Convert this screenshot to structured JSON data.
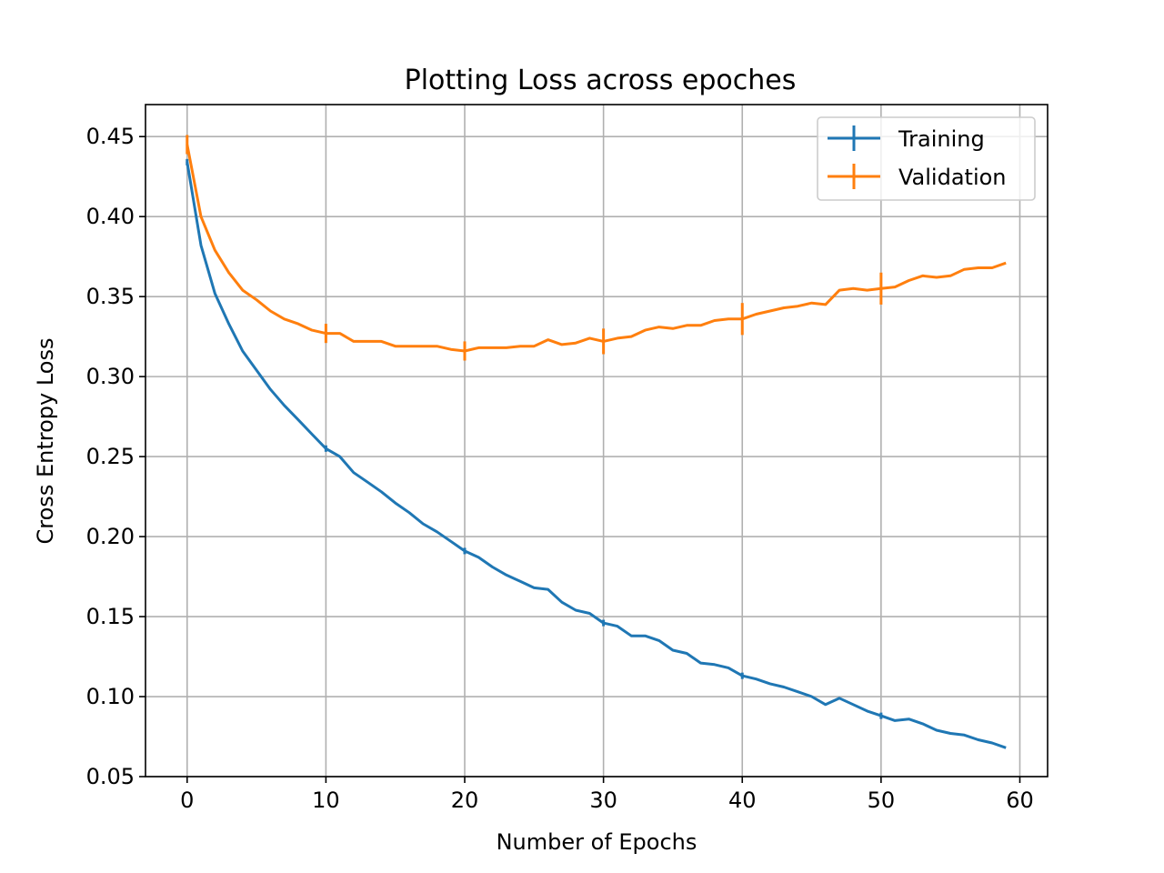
{
  "chart_data": {
    "type": "line",
    "title": "Plotting Loss across epoches",
    "xlabel": "Number of Epochs",
    "ylabel": "Cross Entropy Loss",
    "xlim": [
      -3,
      62
    ],
    "ylim": [
      0.05,
      0.47
    ],
    "xticks": [
      0,
      10,
      20,
      30,
      40,
      50,
      60
    ],
    "yticks": [
      0.05,
      0.1,
      0.15,
      0.2,
      0.25,
      0.3,
      0.35,
      0.4,
      0.45
    ],
    "ytick_labels": [
      "0.05",
      "0.10",
      "0.15",
      "0.20",
      "0.25",
      "0.30",
      "0.35",
      "0.40",
      "0.45"
    ],
    "grid": true,
    "legend_position": "top-right",
    "x": [
      0,
      1,
      2,
      3,
      4,
      5,
      6,
      7,
      8,
      9,
      10,
      11,
      12,
      13,
      14,
      15,
      16,
      17,
      18,
      19,
      20,
      21,
      22,
      23,
      24,
      25,
      26,
      27,
      28,
      29,
      30,
      31,
      32,
      33,
      34,
      35,
      36,
      37,
      38,
      39,
      40,
      41,
      42,
      43,
      44,
      45,
      46,
      47,
      48,
      49,
      50,
      51,
      52,
      53,
      54,
      55,
      56,
      57,
      58,
      59
    ],
    "series": [
      {
        "name": "Training",
        "color": "#1f77b4",
        "values": [
          0.434,
          0.382,
          0.352,
          0.333,
          0.316,
          0.304,
          0.292,
          0.282,
          0.273,
          0.264,
          0.255,
          0.25,
          0.24,
          0.234,
          0.228,
          0.221,
          0.215,
          0.208,
          0.203,
          0.197,
          0.191,
          0.187,
          0.181,
          0.176,
          0.172,
          0.168,
          0.167,
          0.159,
          0.154,
          0.152,
          0.146,
          0.144,
          0.138,
          0.138,
          0.135,
          0.129,
          0.127,
          0.121,
          0.12,
          0.118,
          0.113,
          0.111,
          0.108,
          0.106,
          0.103,
          0.1,
          0.095,
          0.099,
          0.095,
          0.091,
          0.088,
          0.085,
          0.086,
          0.083,
          0.079,
          0.077,
          0.076,
          0.073,
          0.071,
          0.068
        ],
        "error_at": [
          0,
          10,
          20,
          30,
          40,
          50
        ],
        "error": [
          0.002,
          0.002,
          0.002,
          0.002,
          0.002,
          0.002
        ]
      },
      {
        "name": "Validation",
        "color": "#ff7f0e",
        "values": [
          0.445,
          0.4,
          0.379,
          0.365,
          0.354,
          0.348,
          0.341,
          0.336,
          0.333,
          0.329,
          0.327,
          0.327,
          0.322,
          0.322,
          0.322,
          0.319,
          0.319,
          0.319,
          0.319,
          0.317,
          0.316,
          0.318,
          0.318,
          0.318,
          0.319,
          0.319,
          0.323,
          0.32,
          0.321,
          0.324,
          0.322,
          0.324,
          0.325,
          0.329,
          0.331,
          0.33,
          0.332,
          0.332,
          0.335,
          0.336,
          0.336,
          0.339,
          0.341,
          0.343,
          0.344,
          0.346,
          0.345,
          0.354,
          0.355,
          0.354,
          0.355,
          0.356,
          0.36,
          0.363,
          0.362,
          0.363,
          0.367,
          0.368,
          0.368,
          0.371
        ],
        "error_at": [
          0,
          10,
          20,
          30,
          40,
          50
        ],
        "error": [
          0.006,
          0.006,
          0.006,
          0.008,
          0.01,
          0.01
        ]
      }
    ]
  }
}
